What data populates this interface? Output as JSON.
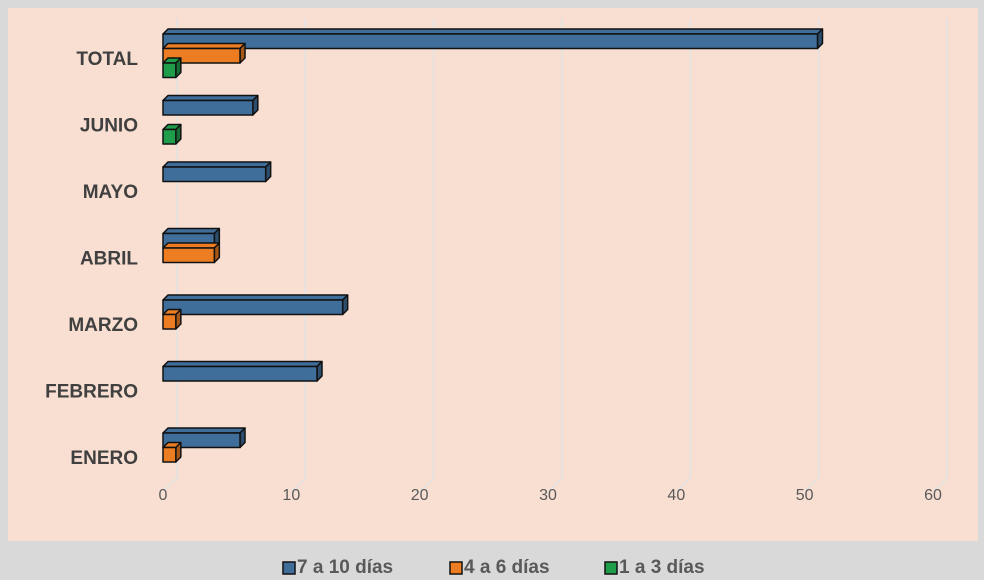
{
  "chart_data": {
    "type": "bar3d_horizontal",
    "categories": [
      "ENERO",
      "FEBRERO",
      "MARZO",
      "ABRIL",
      "MAYO",
      "JUNIO",
      "TOTAL"
    ],
    "series": [
      {
        "name": "7 a 10 días",
        "color": "#3f6e9a",
        "values": [
          6,
          12,
          14,
          4,
          8,
          7,
          51
        ]
      },
      {
        "name": "4 a 6 días",
        "color": "#ec7d22",
        "values": [
          1,
          0,
          1,
          4,
          0,
          0,
          6
        ]
      },
      {
        "name": "1 a 3 días",
        "color": "#1f9d4a",
        "values": [
          0,
          0,
          0,
          0,
          0,
          1,
          1
        ]
      }
    ],
    "xlim": [
      0,
      60
    ],
    "xticks": [
      0,
      10,
      20,
      30,
      40,
      50,
      60
    ],
    "grid": true,
    "legend": "bottom"
  }
}
